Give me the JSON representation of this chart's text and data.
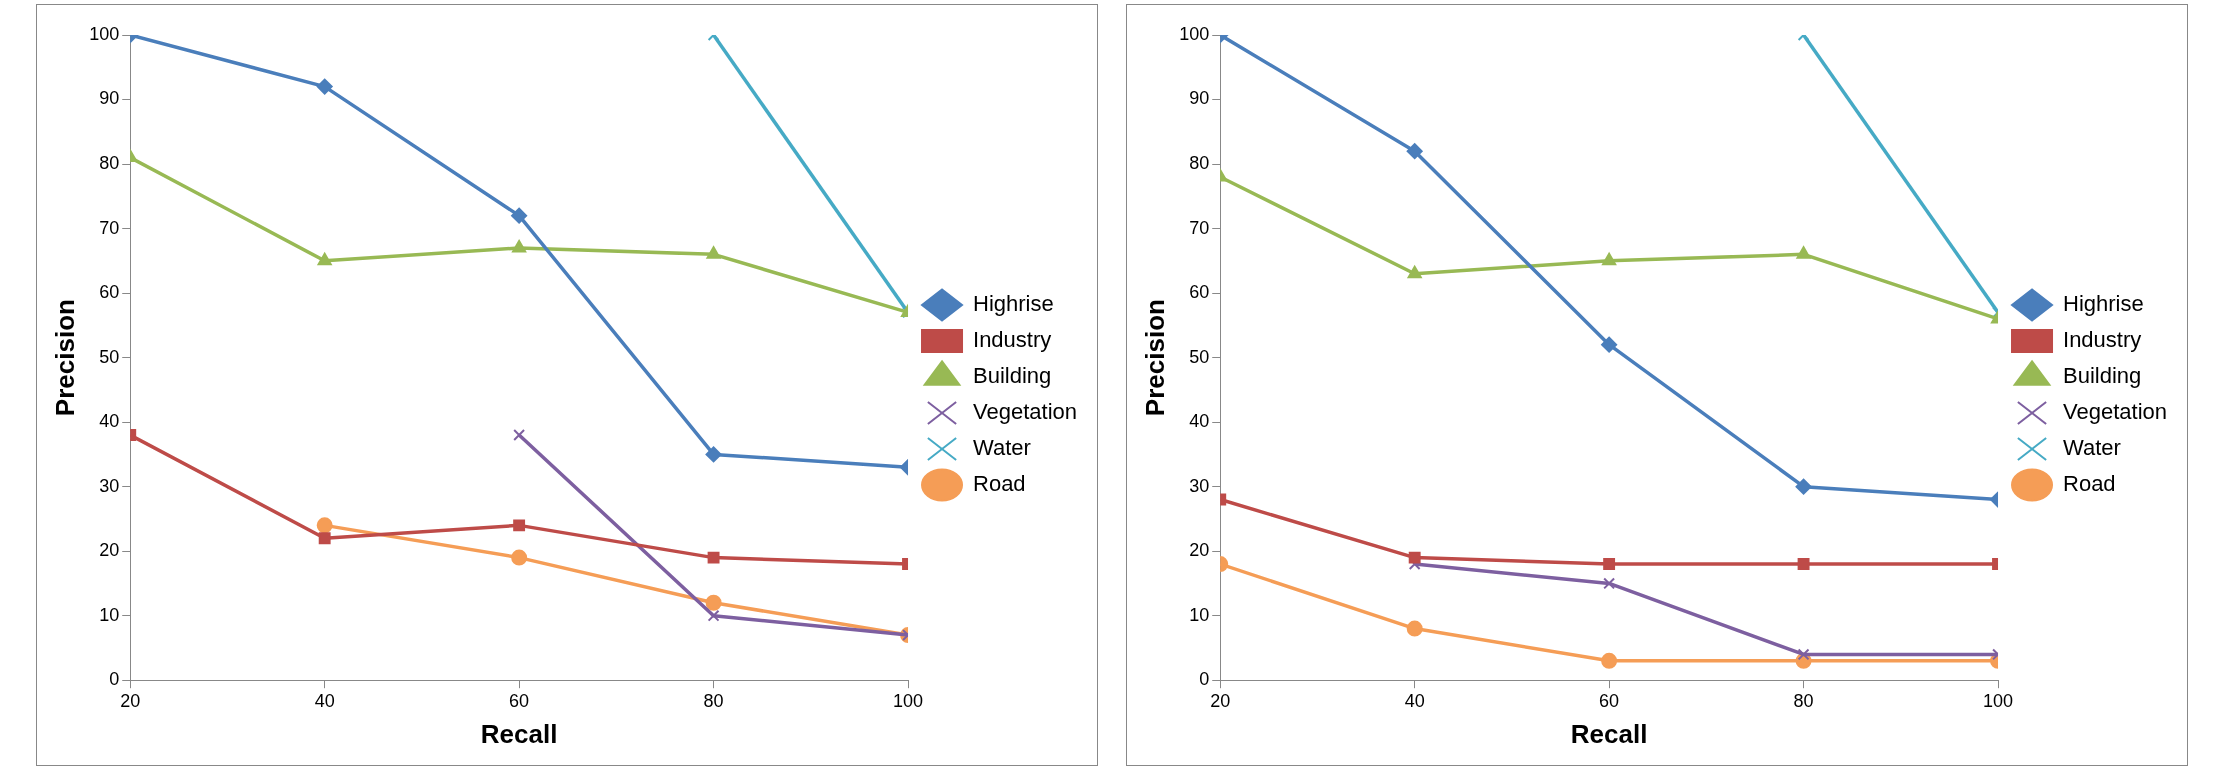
{
  "chart_data": [
    {
      "type": "line",
      "xlabel": "Recall",
      "ylabel": "Precision",
      "x": [
        20,
        40,
        60,
        80,
        100
      ],
      "xlim": [
        20,
        100
      ],
      "xticks": [
        20,
        40,
        60,
        80,
        100
      ],
      "ylim": [
        0,
        100
      ],
      "yticks": [
        0,
        10,
        20,
        30,
        40,
        50,
        60,
        70,
        80,
        90,
        100
      ],
      "grid": false,
      "legend": "right",
      "series": [
        {
          "name": "Highrise",
          "color": "#4a7ebb",
          "marker": "diamond",
          "values": [
            100,
            92,
            72,
            35,
            33
          ]
        },
        {
          "name": "Industry",
          "color": "#be4b48",
          "marker": "square",
          "values": [
            38,
            22,
            24,
            19,
            18
          ]
        },
        {
          "name": "Building",
          "color": "#98b954",
          "marker": "triangle",
          "values": [
            81,
            65,
            67,
            66,
            57
          ]
        },
        {
          "name": "Vegetation",
          "color": "#7d5fa0",
          "marker": "cross",
          "values": [
            null,
            null,
            38,
            10,
            7
          ]
        },
        {
          "name": "Water",
          "color": "#46aac5",
          "marker": "cross",
          "values": [
            null,
            null,
            null,
            100,
            57
          ]
        },
        {
          "name": "Road",
          "color": "#f59d56",
          "marker": "circle",
          "values": [
            null,
            24,
            19,
            12,
            7
          ]
        }
      ]
    },
    {
      "type": "line",
      "xlabel": "Recall",
      "ylabel": "Precision",
      "x": [
        20,
        40,
        60,
        80,
        100
      ],
      "xlim": [
        20,
        100
      ],
      "xticks": [
        20,
        40,
        60,
        80,
        100
      ],
      "ylim": [
        0,
        100
      ],
      "yticks": [
        0,
        10,
        20,
        30,
        40,
        50,
        60,
        70,
        80,
        90,
        100
      ],
      "grid": false,
      "legend": "right",
      "series": [
        {
          "name": "Highrise",
          "color": "#4a7ebb",
          "marker": "diamond",
          "values": [
            100,
            82,
            52,
            30,
            28
          ]
        },
        {
          "name": "Industry",
          "color": "#be4b48",
          "marker": "square",
          "values": [
            28,
            19,
            18,
            18,
            18
          ]
        },
        {
          "name": "Building",
          "color": "#98b954",
          "marker": "triangle",
          "values": [
            78,
            63,
            65,
            66,
            56
          ]
        },
        {
          "name": "Vegetation",
          "color": "#7d5fa0",
          "marker": "cross",
          "values": [
            null,
            18,
            15,
            4,
            4
          ]
        },
        {
          "name": "Water",
          "color": "#46aac5",
          "marker": "cross",
          "values": [
            null,
            null,
            null,
            100,
            57
          ]
        },
        {
          "name": "Road",
          "color": "#f59d56",
          "marker": "circle",
          "values": [
            18,
            8,
            3,
            3,
            3
          ]
        }
      ]
    }
  ]
}
